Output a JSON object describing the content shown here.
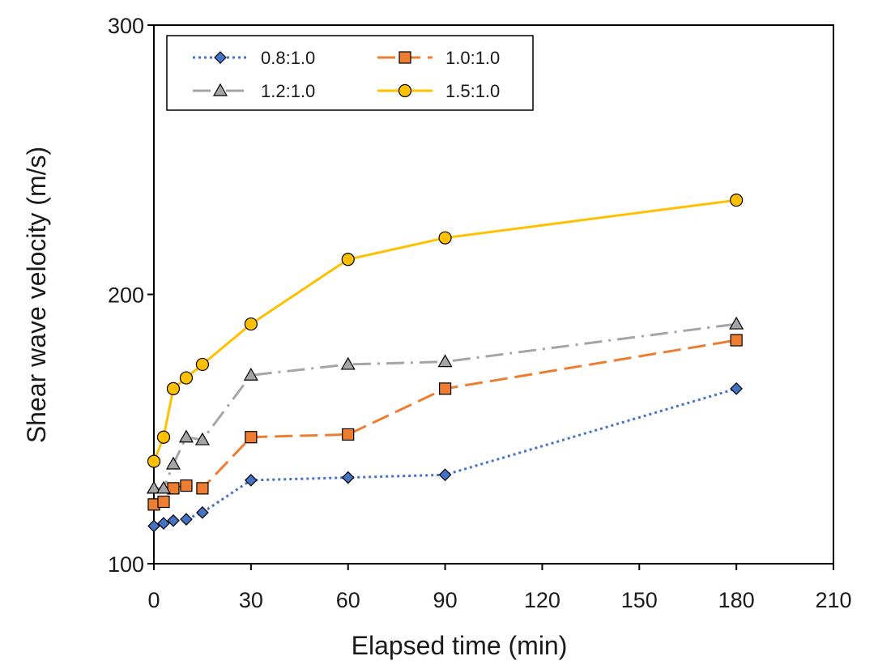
{
  "chart_data": {
    "type": "line",
    "title": "",
    "xlabel": "Elapsed time (min)",
    "ylabel": "Shear wave velocity (m/s)",
    "xlim": [
      0,
      210
    ],
    "ylim": [
      100,
      300
    ],
    "xticks": [
      0,
      30,
      60,
      90,
      120,
      150,
      180,
      210
    ],
    "yticks": [
      100,
      200,
      300
    ],
    "grid": false,
    "legend_position": "top-left",
    "series": [
      {
        "name": "0.8:1.0",
        "color": "#4472C4",
        "line_style": "dotted",
        "marker": "diamond",
        "marker_fill": "#4472C4",
        "x": [
          0,
          3,
          6,
          10,
          15,
          30,
          60,
          90,
          180
        ],
        "y": [
          114,
          115,
          116,
          116.5,
          119,
          131,
          132,
          133,
          165
        ]
      },
      {
        "name": "1.0:1.0",
        "color": "#ED7D31",
        "line_style": "dashed",
        "marker": "square",
        "marker_fill": "#ED7D31",
        "x": [
          0,
          3,
          6,
          10,
          15,
          30,
          60,
          90,
          180
        ],
        "y": [
          122,
          123,
          128,
          129,
          128,
          147,
          148,
          165,
          183
        ]
      },
      {
        "name": "1.2:1.0",
        "color": "#A5A5A5",
        "line_style": "dash-dot",
        "marker": "triangle",
        "marker_fill": "#A5A5A5",
        "x": [
          0,
          3,
          6,
          10,
          15,
          30,
          60,
          90,
          180
        ],
        "y": [
          128,
          128,
          137,
          147,
          146,
          170,
          174,
          175,
          189
        ]
      },
      {
        "name": "1.5:1.0",
        "color": "#FFC000",
        "line_style": "solid",
        "marker": "circle",
        "marker_fill": "#FFC000",
        "x": [
          0,
          3,
          6,
          10,
          15,
          30,
          60,
          90,
          180
        ],
        "y": [
          138,
          147,
          165,
          169,
          174,
          189,
          213,
          221,
          235
        ]
      }
    ]
  }
}
